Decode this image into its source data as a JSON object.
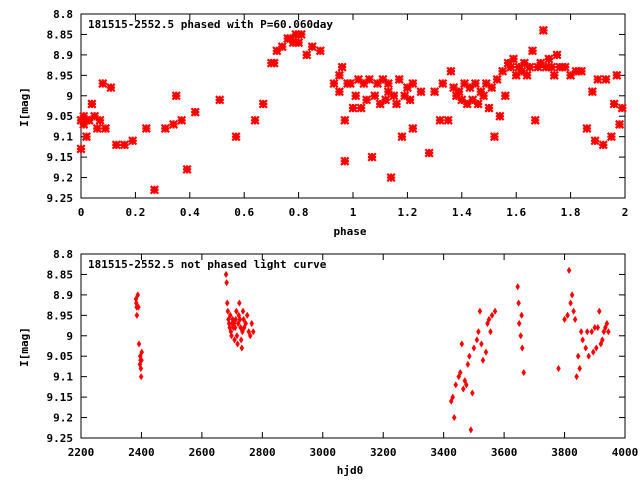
{
  "chart_data": [
    {
      "type": "scatter",
      "title": "181515-2552.5 phased with P=60.060day",
      "xlabel": "phase",
      "ylabel": "I[mag]",
      "xlim": [
        0,
        2
      ],
      "ylim": [
        9.25,
        8.8
      ],
      "y_inverted": true,
      "xticks": [
        "0",
        "0.2",
        "0.4",
        "0.6",
        "0.8",
        "1",
        "1.2",
        "1.4",
        "1.6",
        "1.8",
        "2"
      ],
      "yticks": [
        "8.8",
        "8.85",
        "8.9",
        "8.95",
        "9",
        "9.05",
        "9.1",
        "9.15",
        "9.2",
        "9.25"
      ],
      "grid": false,
      "marker": "star",
      "color": "#ff0000",
      "points": [
        [
          0.0,
          9.13
        ],
        [
          0.0,
          9.06
        ],
        [
          0.01,
          9.05
        ],
        [
          0.01,
          9.07
        ],
        [
          0.02,
          9.06
        ],
        [
          0.02,
          9.1
        ],
        [
          0.03,
          9.06
        ],
        [
          0.04,
          9.02
        ],
        [
          0.05,
          9.05
        ],
        [
          0.06,
          9.08
        ],
        [
          0.07,
          9.06
        ],
        [
          0.08,
          8.97
        ],
        [
          0.09,
          9.08
        ],
        [
          0.11,
          8.98
        ],
        [
          0.13,
          9.12
        ],
        [
          0.16,
          9.12
        ],
        [
          0.19,
          9.11
        ],
        [
          0.24,
          9.08
        ],
        [
          0.27,
          9.23
        ],
        [
          0.31,
          9.08
        ],
        [
          0.34,
          9.07
        ],
        [
          0.35,
          9.0
        ],
        [
          0.37,
          9.06
        ],
        [
          0.39,
          9.18
        ],
        [
          0.42,
          9.04
        ],
        [
          0.51,
          9.01
        ],
        [
          0.57,
          9.1
        ],
        [
          0.64,
          9.06
        ],
        [
          0.67,
          9.02
        ],
        [
          0.7,
          8.92
        ],
        [
          0.71,
          8.92
        ],
        [
          0.72,
          8.89
        ],
        [
          0.74,
          8.88
        ],
        [
          0.76,
          8.86
        ],
        [
          0.77,
          8.86
        ],
        [
          0.78,
          8.87
        ],
        [
          0.79,
          8.85
        ],
        [
          0.8,
          8.87
        ],
        [
          0.81,
          8.85
        ],
        [
          0.83,
          8.9
        ],
        [
          0.85,
          8.88
        ],
        [
          0.88,
          8.89
        ],
        [
          0.93,
          8.97
        ],
        [
          0.95,
          8.95
        ],
        [
          0.95,
          8.99
        ],
        [
          0.96,
          8.93
        ],
        [
          0.97,
          9.06
        ],
        [
          0.97,
          9.16
        ],
        [
          0.98,
          8.97
        ],
        [
          0.99,
          8.97
        ],
        [
          1.0,
          9.03
        ],
        [
          1.01,
          9.0
        ],
        [
          1.02,
          8.96
        ],
        [
          1.03,
          9.03
        ],
        [
          1.04,
          8.97
        ],
        [
          1.05,
          9.01
        ],
        [
          1.06,
          8.96
        ],
        [
          1.07,
          9.15
        ],
        [
          1.08,
          9.0
        ],
        [
          1.09,
          8.97
        ],
        [
          1.1,
          9.02
        ],
        [
          1.11,
          8.96
        ],
        [
          1.12,
          9.01
        ],
        [
          1.13,
          8.97
        ],
        [
          1.13,
          8.99
        ],
        [
          1.14,
          9.2
        ],
        [
          1.15,
          9.0
        ],
        [
          1.16,
          9.02
        ],
        [
          1.17,
          8.96
        ],
        [
          1.18,
          9.1
        ],
        [
          1.19,
          9.0
        ],
        [
          1.2,
          8.98
        ],
        [
          1.21,
          9.01
        ],
        [
          1.22,
          8.97
        ],
        [
          1.22,
          9.08
        ],
        [
          1.25,
          8.99
        ],
        [
          1.28,
          9.14
        ],
        [
          1.3,
          8.99
        ],
        [
          1.32,
          9.06
        ],
        [
          1.33,
          8.97
        ],
        [
          1.35,
          9.06
        ],
        [
          1.36,
          8.94
        ],
        [
          1.37,
          8.98
        ],
        [
          1.38,
          9.0
        ],
        [
          1.39,
          8.99
        ],
        [
          1.4,
          9.01
        ],
        [
          1.41,
          8.97
        ],
        [
          1.42,
          9.02
        ],
        [
          1.43,
          8.98
        ],
        [
          1.44,
          9.01
        ],
        [
          1.45,
          8.97
        ],
        [
          1.46,
          9.02
        ],
        [
          1.47,
          8.99
        ],
        [
          1.48,
          9.0
        ],
        [
          1.49,
          8.97
        ],
        [
          1.5,
          9.03
        ],
        [
          1.51,
          8.98
        ],
        [
          1.52,
          9.1
        ],
        [
          1.53,
          8.96
        ],
        [
          1.54,
          9.05
        ],
        [
          1.55,
          8.94
        ],
        [
          1.56,
          9.0
        ],
        [
          1.57,
          8.92
        ],
        [
          1.58,
          8.93
        ],
        [
          1.59,
          8.91
        ],
        [
          1.6,
          8.95
        ],
        [
          1.61,
          8.93
        ],
        [
          1.62,
          8.94
        ],
        [
          1.63,
          8.92
        ],
        [
          1.64,
          8.95
        ],
        [
          1.65,
          8.93
        ],
        [
          1.66,
          8.89
        ],
        [
          1.67,
          9.06
        ],
        [
          1.68,
          8.93
        ],
        [
          1.69,
          8.92
        ],
        [
          1.7,
          8.84
        ],
        [
          1.71,
          8.93
        ],
        [
          1.72,
          8.91
        ],
        [
          1.73,
          8.93
        ],
        [
          1.74,
          8.95
        ],
        [
          1.75,
          8.9
        ],
        [
          1.76,
          8.93
        ],
        [
          1.78,
          8.93
        ],
        [
          1.8,
          8.95
        ],
        [
          1.82,
          8.94
        ],
        [
          1.84,
          8.94
        ],
        [
          1.86,
          9.08
        ],
        [
          1.88,
          8.99
        ],
        [
          1.89,
          9.11
        ],
        [
          1.9,
          8.96
        ],
        [
          1.92,
          9.12
        ],
        [
          1.93,
          8.96
        ],
        [
          1.95,
          9.1
        ],
        [
          1.96,
          9.02
        ],
        [
          1.97,
          8.95
        ],
        [
          1.98,
          9.07
        ],
        [
          1.99,
          9.03
        ]
      ]
    },
    {
      "type": "scatter",
      "title": "181515-2552.5 not phased light curve",
      "xlabel": "hjd0",
      "ylabel": "I[mag]",
      "xlim": [
        2200,
        4000
      ],
      "ylim": [
        9.25,
        8.8
      ],
      "y_inverted": true,
      "xticks": [
        "2200",
        "2400",
        "2600",
        "2800",
        "3000",
        "3200",
        "3400",
        "3600",
        "3800",
        "4000"
      ],
      "yticks": [
        "8.8",
        "8.85",
        "8.9",
        "8.95",
        "9",
        "9.05",
        "9.1",
        "9.15",
        "9.2",
        "9.25"
      ],
      "grid": false,
      "marker": "diamond",
      "color": "#ff0000",
      "points": [
        [
          2382,
          8.91
        ],
        [
          2383,
          8.92
        ],
        [
          2384,
          8.93
        ],
        [
          2385,
          8.95
        ],
        [
          2388,
          8.9
        ],
        [
          2390,
          8.93
        ],
        [
          2392,
          9.02
        ],
        [
          2395,
          9.07
        ],
        [
          2396,
          9.05
        ],
        [
          2397,
          9.06
        ],
        [
          2398,
          9.08
        ],
        [
          2399,
          9.1
        ],
        [
          2400,
          9.06
        ],
        [
          2401,
          9.04
        ],
        [
          2680,
          8.85
        ],
        [
          2682,
          8.87
        ],
        [
          2684,
          8.92
        ],
        [
          2686,
          8.94
        ],
        [
          2688,
          8.96
        ],
        [
          2690,
          8.97
        ],
        [
          2692,
          8.98
        ],
        [
          2694,
          8.95
        ],
        [
          2696,
          8.99
        ],
        [
          2698,
          9.0
        ],
        [
          2700,
          8.97
        ],
        [
          2702,
          8.96
        ],
        [
          2704,
          8.98
        ],
        [
          2706,
          8.97
        ],
        [
          2708,
          9.01
        ],
        [
          2710,
          8.98
        ],
        [
          2712,
          8.96
        ],
        [
          2714,
          8.94
        ],
        [
          2716,
          9.0
        ],
        [
          2718,
          9.02
        ],
        [
          2720,
          8.97
        ],
        [
          2722,
          8.95
        ],
        [
          2724,
          8.92
        ],
        [
          2726,
          8.96
        ],
        [
          2728,
          8.98
        ],
        [
          2730,
          9.01
        ],
        [
          2732,
          9.03
        ],
        [
          2734,
          8.99
        ],
        [
          2736,
          8.94
        ],
        [
          2738,
          8.96
        ],
        [
          2740,
          8.98
        ],
        [
          2745,
          8.97
        ],
        [
          2750,
          8.95
        ],
        [
          2755,
          8.99
        ],
        [
          2760,
          9.0
        ],
        [
          2765,
          8.97
        ],
        [
          2770,
          8.99
        ],
        [
          3425,
          9.16
        ],
        [
          3430,
          9.15
        ],
        [
          3435,
          9.2
        ],
        [
          3440,
          9.12
        ],
        [
          3450,
          9.1
        ],
        [
          3455,
          9.09
        ],
        [
          3460,
          9.02
        ],
        [
          3465,
          9.13
        ],
        [
          3470,
          9.11
        ],
        [
          3475,
          9.12
        ],
        [
          3480,
          9.07
        ],
        [
          3485,
          9.05
        ],
        [
          3490,
          9.23
        ],
        [
          3495,
          9.14
        ],
        [
          3500,
          9.03
        ],
        [
          3510,
          9.01
        ],
        [
          3515,
          8.99
        ],
        [
          3520,
          8.94
        ],
        [
          3525,
          9.02
        ],
        [
          3530,
          9.06
        ],
        [
          3540,
          9.04
        ],
        [
          3545,
          8.97
        ],
        [
          3550,
          8.96
        ],
        [
          3555,
          8.99
        ],
        [
          3560,
          8.95
        ],
        [
          3570,
          8.94
        ],
        [
          3645,
          8.88
        ],
        [
          3648,
          8.92
        ],
        [
          3650,
          8.97
        ],
        [
          3655,
          9.0
        ],
        [
          3658,
          8.95
        ],
        [
          3660,
          9.03
        ],
        [
          3665,
          9.09
        ],
        [
          3780,
          9.08
        ],
        [
          3800,
          8.96
        ],
        [
          3810,
          8.95
        ],
        [
          3815,
          8.84
        ],
        [
          3820,
          8.92
        ],
        [
          3825,
          8.9
        ],
        [
          3830,
          8.94
        ],
        [
          3835,
          8.96
        ],
        [
          3840,
          9.1
        ],
        [
          3845,
          9.05
        ],
        [
          3850,
          9.08
        ],
        [
          3855,
          8.99
        ],
        [
          3860,
          9.01
        ],
        [
          3870,
          9.03
        ],
        [
          3875,
          8.99
        ],
        [
          3880,
          9.05
        ],
        [
          3890,
          8.99
        ],
        [
          3895,
          9.04
        ],
        [
          3900,
          8.98
        ],
        [
          3905,
          9.03
        ],
        [
          3910,
          8.98
        ],
        [
          3915,
          8.94
        ],
        [
          3920,
          9.02
        ],
        [
          3925,
          9.01
        ],
        [
          3930,
          8.99
        ],
        [
          3935,
          8.98
        ],
        [
          3940,
          8.97
        ],
        [
          3945,
          8.99
        ]
      ]
    }
  ]
}
